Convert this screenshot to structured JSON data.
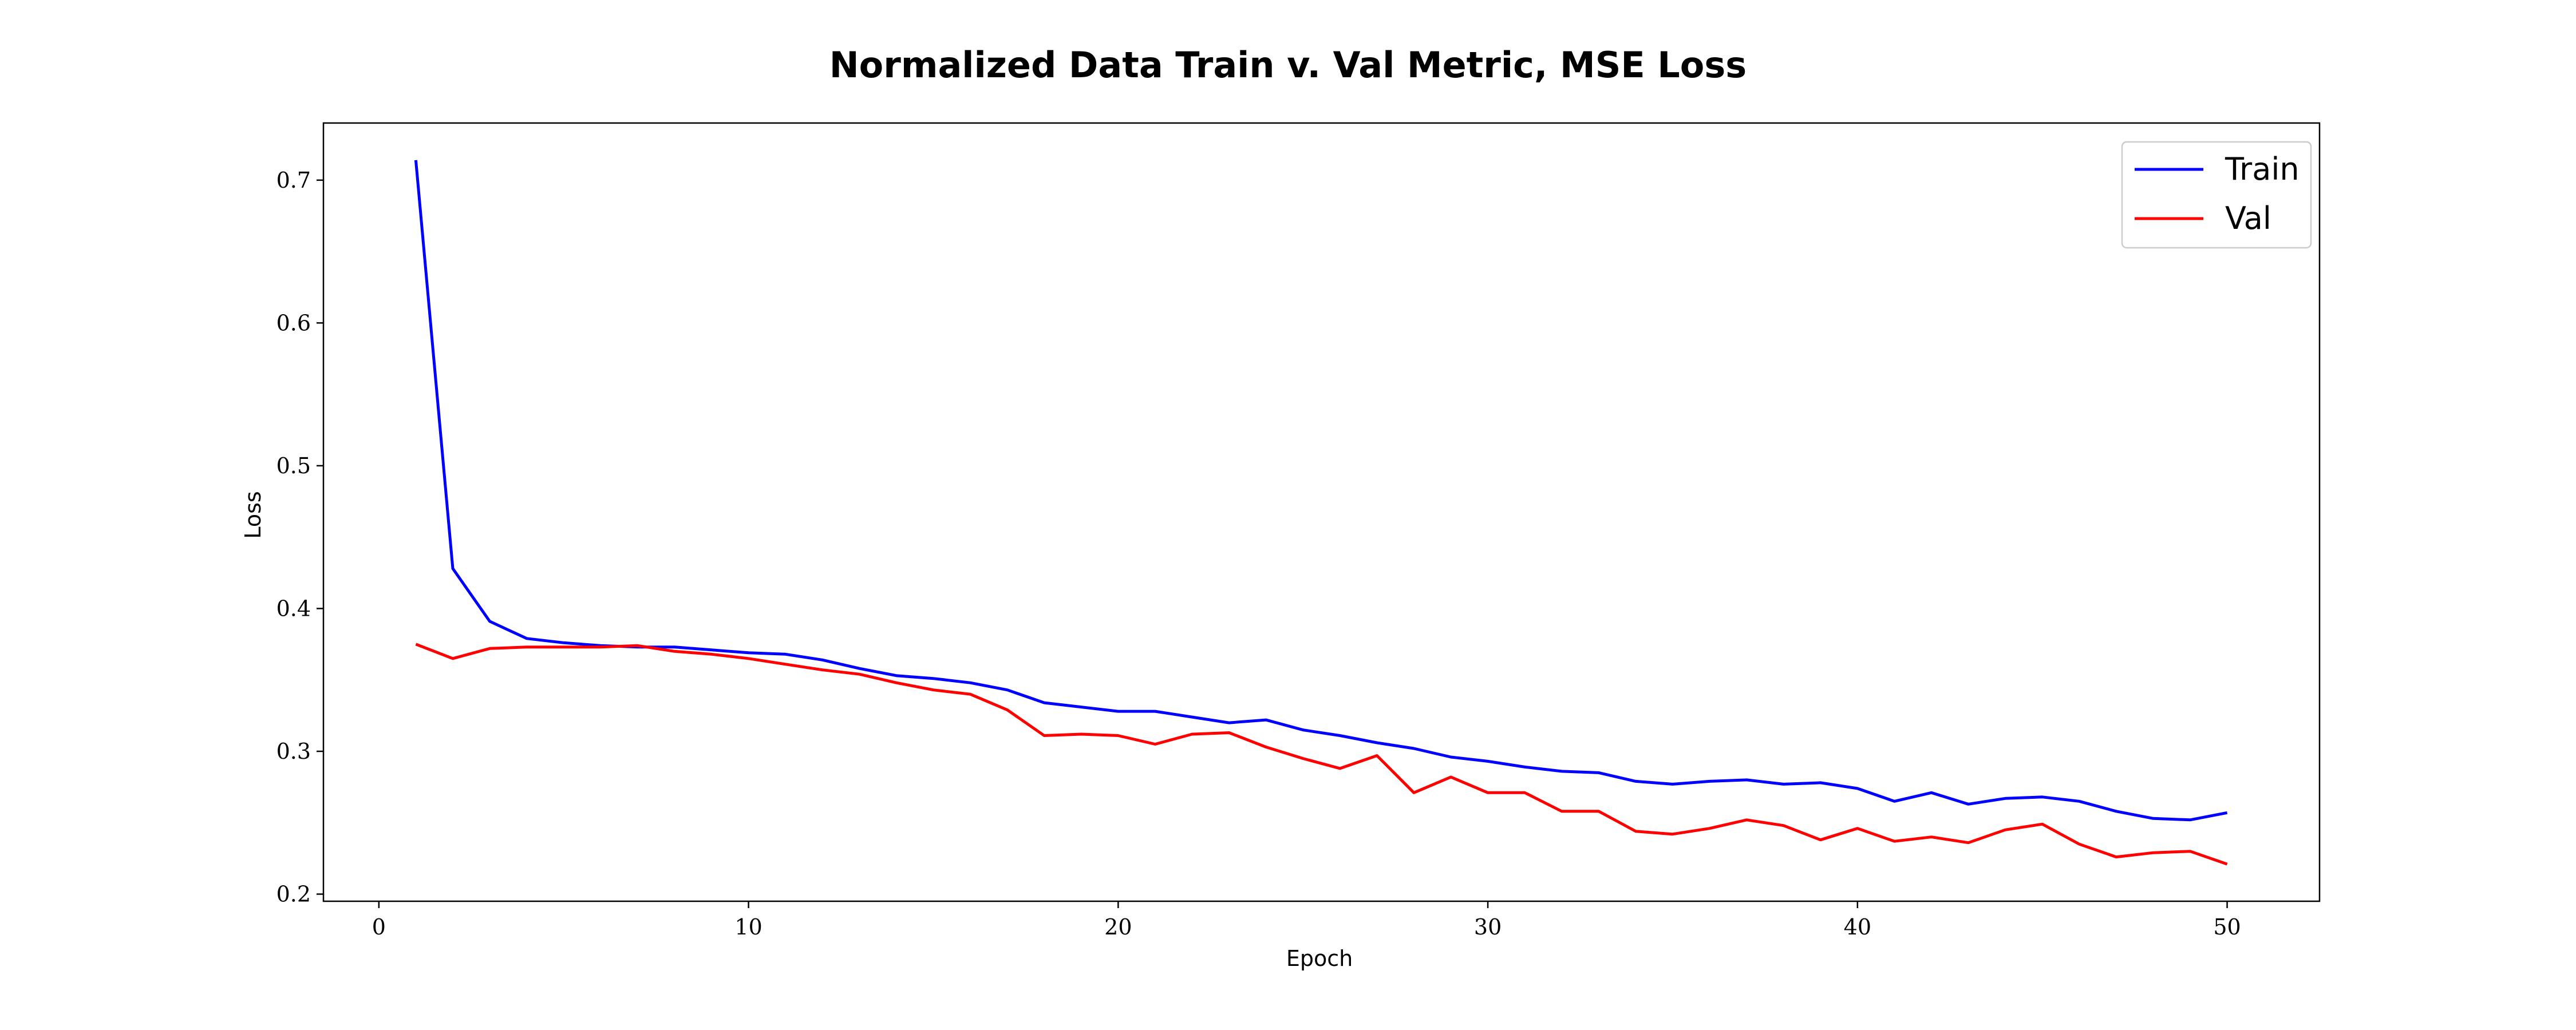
{
  "chart_data": {
    "type": "line",
    "title": "Normalized Data Train v. Val Metric, MSE Loss",
    "xlabel": "Epoch",
    "ylabel": "Loss",
    "xlim": [
      -1.5,
      52.5
    ],
    "ylim": [
      0.195,
      0.74
    ],
    "xticks": [
      0,
      10,
      20,
      30,
      40,
      50
    ],
    "yticks": [
      0.2,
      0.3,
      0.4,
      0.5,
      0.6,
      0.7
    ],
    "xtick_labels": [
      "0",
      "10",
      "20",
      "30",
      "40",
      "50"
    ],
    "ytick_labels": [
      "0.2",
      "0.3",
      "0.4",
      "0.5",
      "0.6",
      "0.7"
    ],
    "grid": false,
    "legend_position": "top-right",
    "x": [
      1,
      2,
      3,
      4,
      5,
      6,
      7,
      8,
      9,
      10,
      11,
      12,
      13,
      14,
      15,
      16,
      17,
      18,
      19,
      20,
      21,
      22,
      23,
      24,
      25,
      26,
      27,
      28,
      29,
      30,
      31,
      32,
      33,
      34,
      35,
      36,
      37,
      38,
      39,
      40,
      41,
      42,
      43,
      44,
      45,
      46,
      47,
      48,
      49,
      50
    ],
    "series": [
      {
        "name": "Train",
        "color": "#0000ff",
        "values": [
          0.714,
          0.428,
          0.391,
          0.379,
          0.376,
          0.374,
          0.373,
          0.373,
          0.371,
          0.369,
          0.368,
          0.364,
          0.358,
          0.353,
          0.351,
          0.348,
          0.343,
          0.334,
          0.331,
          0.328,
          0.328,
          0.324,
          0.32,
          0.322,
          0.315,
          0.311,
          0.306,
          0.302,
          0.296,
          0.293,
          0.289,
          0.286,
          0.285,
          0.279,
          0.277,
          0.279,
          0.28,
          0.277,
          0.278,
          0.274,
          0.265,
          0.271,
          0.263,
          0.267,
          0.268,
          0.265,
          0.258,
          0.253,
          0.252,
          0.257
        ]
      },
      {
        "name": "Val",
        "color": "#ff0000",
        "values": [
          0.375,
          0.365,
          0.372,
          0.373,
          0.373,
          0.373,
          0.374,
          0.37,
          0.368,
          0.365,
          0.361,
          0.357,
          0.354,
          0.348,
          0.343,
          0.34,
          0.329,
          0.311,
          0.312,
          0.311,
          0.305,
          0.312,
          0.313,
          0.303,
          0.295,
          0.288,
          0.297,
          0.271,
          0.282,
          0.271,
          0.271,
          0.258,
          0.258,
          0.244,
          0.242,
          0.246,
          0.252,
          0.248,
          0.238,
          0.246,
          0.237,
          0.24,
          0.236,
          0.245,
          0.249,
          0.235,
          0.226,
          0.229,
          0.23,
          0.221
        ]
      }
    ]
  }
}
